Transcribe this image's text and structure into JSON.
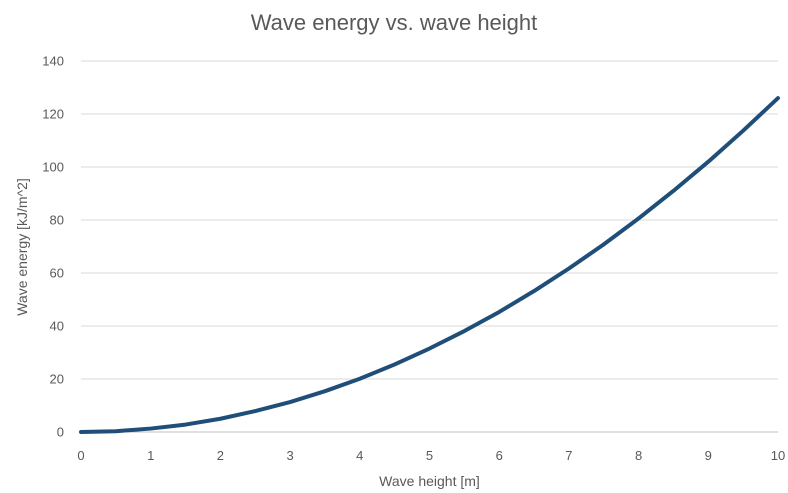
{
  "chart_data": {
    "type": "line",
    "title": "Wave energy vs. wave height",
    "xlabel": "Wave height [m]",
    "ylabel": "Wave energy [kJ/m^2]",
    "xlim": [
      0,
      10
    ],
    "ylim": [
      0,
      140
    ],
    "x_ticks": [
      "0",
      "1",
      "2",
      "3",
      "4",
      "5",
      "6",
      "7",
      "8",
      "9",
      "10"
    ],
    "y_ticks": [
      "0",
      "20",
      "40",
      "60",
      "80",
      "100",
      "120",
      "140"
    ],
    "grid": "horizontal",
    "legend": "none",
    "series": [
      {
        "color": "#1f4e79",
        "x": [
          0,
          0.5,
          1,
          1.5,
          2,
          2.5,
          3,
          3.5,
          4,
          4.5,
          5,
          5.5,
          6,
          6.5,
          7,
          7.5,
          8,
          8.5,
          9,
          9.5,
          10
        ],
        "y": [
          0,
          0.3,
          1.3,
          2.8,
          5,
          7.9,
          11.3,
          15.4,
          20.1,
          25.5,
          31.5,
          38.1,
          45.3,
          53.2,
          61.7,
          70.8,
          80.6,
          91,
          102,
          113.7,
          126
        ]
      }
    ]
  }
}
